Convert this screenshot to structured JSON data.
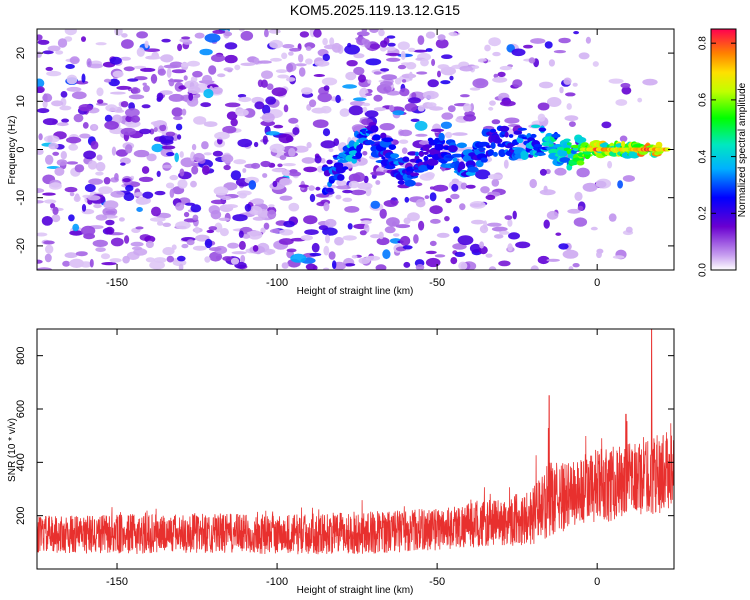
{
  "title": "KOM5.2025.119.13.12.G15",
  "chart_data": [
    {
      "type": "heatmap",
      "xlabel": "Height of straight line (km)",
      "ylabel": "Frequency (Hz)",
      "xlim": [
        -175,
        24
      ],
      "ylim": [
        -25,
        25
      ],
      "xticks": [
        -150,
        -100,
        -50,
        0
      ],
      "yticks": [
        -20,
        -10,
        0,
        10,
        20
      ],
      "colorbar": {
        "label": "Normalized spectral amplitude",
        "ticks": [
          0.0,
          0.2,
          0.4,
          0.6,
          0.8
        ],
        "tick_labels": [
          "0.0",
          "0.2",
          "0.4",
          "0.6",
          "0.8"
        ],
        "range": [
          0,
          0.85
        ],
        "colormap": "rainbow"
      },
      "ridge": {
        "x": [
          -85,
          -80,
          -75,
          -70,
          -65,
          -60,
          -55,
          -50,
          -45,
          -40,
          -35,
          -30,
          -25,
          -20,
          -15,
          -10,
          -5,
          0,
          5,
          10,
          15,
          20
        ],
        "freq": [
          -6,
          -4,
          1,
          2,
          -1,
          -5,
          -2,
          0,
          -1,
          -3,
          1,
          2,
          1,
          2,
          2,
          -1,
          0,
          0,
          0,
          0,
          0,
          0
        ],
        "amplitude": [
          0.3,
          0.35,
          0.45,
          0.3,
          0.3,
          0.35,
          0.3,
          0.3,
          0.35,
          0.35,
          0.3,
          0.3,
          0.35,
          0.4,
          0.45,
          0.5,
          0.6,
          0.75,
          0.7,
          0.65,
          0.8,
          0.7
        ]
      }
    },
    {
      "type": "line",
      "xlabel": "Height of straight line (km)",
      "ylabel": "SNR (10 * v/v)",
      "xlim": [
        -175,
        24
      ],
      "ylim": [
        0,
        900
      ],
      "xticks": [
        -150,
        -100,
        -50,
        0
      ],
      "yticks": [
        200,
        400,
        600,
        800
      ],
      "color": "#e8302e",
      "trend": {
        "x": [
          -175,
          -150,
          -125,
          -100,
          -75,
          -50,
          -40,
          -30,
          -20,
          -15,
          -10,
          -5,
          0,
          5,
          10,
          15,
          20,
          24
        ],
        "mean": [
          130,
          130,
          135,
          130,
          135,
          150,
          165,
          175,
          200,
          260,
          270,
          290,
          310,
          320,
          330,
          350,
          360,
          380
        ],
        "spread": [
          70,
          75,
          75,
          75,
          80,
          80,
          85,
          90,
          110,
          140,
          130,
          130,
          140,
          140,
          140,
          150,
          150,
          140
        ]
      },
      "peaks": [
        {
          "x": 17,
          "y": 900
        },
        {
          "x": -15,
          "y": 650
        },
        {
          "x": 9,
          "y": 580
        }
      ]
    }
  ]
}
